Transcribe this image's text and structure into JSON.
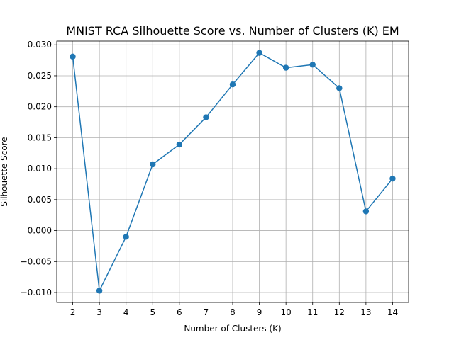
{
  "chart_data": {
    "type": "line",
    "title": "MNIST RCA Silhouette Score vs. Number of Clusters (K) EM",
    "xlabel": "Number of Clusters (K)",
    "ylabel": "Silhouette Score",
    "x": [
      2,
      3,
      4,
      5,
      6,
      7,
      8,
      9,
      10,
      11,
      12,
      13,
      14
    ],
    "series": [
      {
        "values": [
          0.0281,
          -0.0097,
          -0.001,
          0.0107,
          0.0139,
          0.0183,
          0.0236,
          0.0287,
          0.0263,
          0.0268,
          0.023,
          0.0031,
          0.0084
        ],
        "color": "#1f77b4",
        "marker": "circle"
      }
    ],
    "xticks": [
      2,
      3,
      4,
      5,
      6,
      7,
      8,
      9,
      10,
      11,
      12,
      13,
      14
    ],
    "xtick_labels": [
      "2",
      "3",
      "4",
      "5",
      "6",
      "7",
      "8",
      "9",
      "10",
      "11",
      "12",
      "13",
      "14"
    ],
    "yticks": [
      -0.01,
      -0.005,
      0.0,
      0.005,
      0.01,
      0.015,
      0.02,
      0.025,
      0.03
    ],
    "ytick_labels": [
      "−0.010",
      "−0.005",
      "0.000",
      "0.005",
      "0.010",
      "0.015",
      "0.020",
      "0.025",
      "0.030"
    ],
    "xlim": [
      1.4,
      14.6
    ],
    "ylim": [
      -0.0116,
      0.0306
    ],
    "grid": true
  }
}
